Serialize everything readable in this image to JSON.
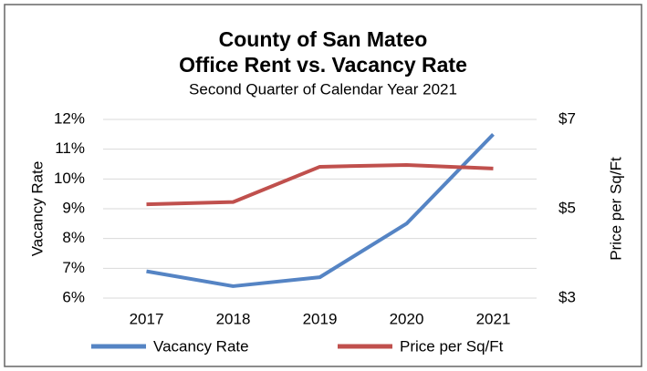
{
  "chart_data": {
    "type": "line",
    "title": "County of San Mateo",
    "subtitle": "Office Rent vs. Vacancy Rate",
    "subtitle2": "Second Quarter of Calendar Year 2021",
    "ylabel": "Vacancy Rate",
    "y2label": "Price per Sq/Ft",
    "categories": [
      "2017",
      "2018",
      "2019",
      "2020",
      "2021"
    ],
    "ylim": [
      6,
      12
    ],
    "yticks": [
      {
        "value": 6,
        "label": "6%"
      },
      {
        "value": 7,
        "label": "7%"
      },
      {
        "value": 8,
        "label": "8%"
      },
      {
        "value": 9,
        "label": "9%"
      },
      {
        "value": 10,
        "label": "10%"
      },
      {
        "value": 11,
        "label": "11%"
      },
      {
        "value": 12,
        "label": "12%"
      }
    ],
    "y2lim": [
      3,
      7
    ],
    "y2ticks": [
      {
        "value": 3,
        "label": "$3"
      },
      {
        "value": 5,
        "label": "$5"
      },
      {
        "value": 7,
        "label": "$7"
      }
    ],
    "grid": true,
    "legend": "bottom",
    "series": [
      {
        "name": "Vacancy Rate",
        "color": "#5584c4",
        "values": [
          6.9,
          6.4,
          6.7,
          8.5,
          11.5
        ]
      },
      {
        "name": "Price per Sq/Ft",
        "color": "#c0504d",
        "axis": "y2",
        "values": [
          5.1,
          5.15,
          5.94,
          5.98,
          5.9
        ]
      }
    ]
  }
}
